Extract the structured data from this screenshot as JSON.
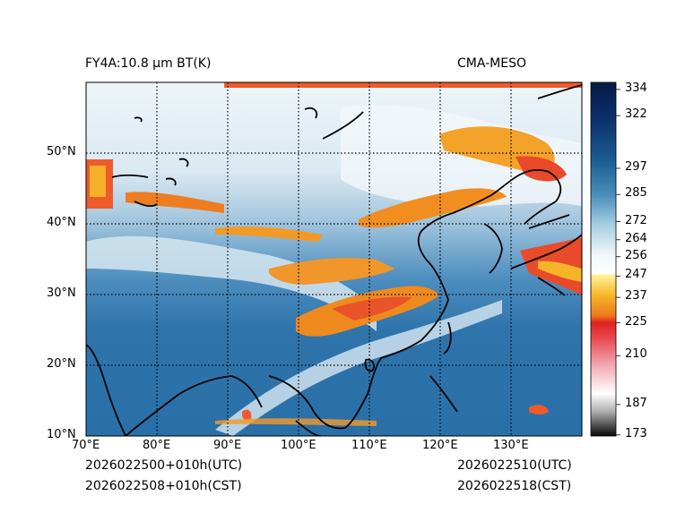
{
  "header": {
    "title": "FY4A:10.8 µm BT(K)",
    "source": "CMA-MESO"
  },
  "footer": {
    "init_utc": "2026022500+010h(UTC)",
    "init_cst": "2026022508+010h(CST)",
    "valid_utc": "2026022510(UTC)",
    "valid_cst": "2026022518(CST)"
  },
  "map": {
    "lon_ticks": [
      "70°E",
      "80°E",
      "90°E",
      "100°E",
      "110°E",
      "120°E",
      "130°E"
    ],
    "lat_ticks": [
      "10°N",
      "20°N",
      "30°N",
      "40°N",
      "50°N"
    ],
    "lon_range": [
      70,
      140
    ],
    "lat_range": [
      10,
      60
    ]
  },
  "colorbar": {
    "unit": "K",
    "ticks": [
      "334",
      "322",
      "297",
      "285",
      "272",
      "264",
      "256",
      "247",
      "237",
      "225",
      "210",
      "187",
      "173"
    ],
    "tick_values": [
      334,
      322,
      297,
      285,
      272,
      264,
      256,
      247,
      237,
      225,
      210,
      187,
      173
    ],
    "range": [
      173,
      338
    ]
  },
  "colors": {
    "ocean_blue": "#2f77ad",
    "deep_blue": "#1f5f95",
    "cloud_white": "#e8f2f8",
    "cold_orange": "#f39a1f",
    "cold_red": "#e8442a"
  }
}
